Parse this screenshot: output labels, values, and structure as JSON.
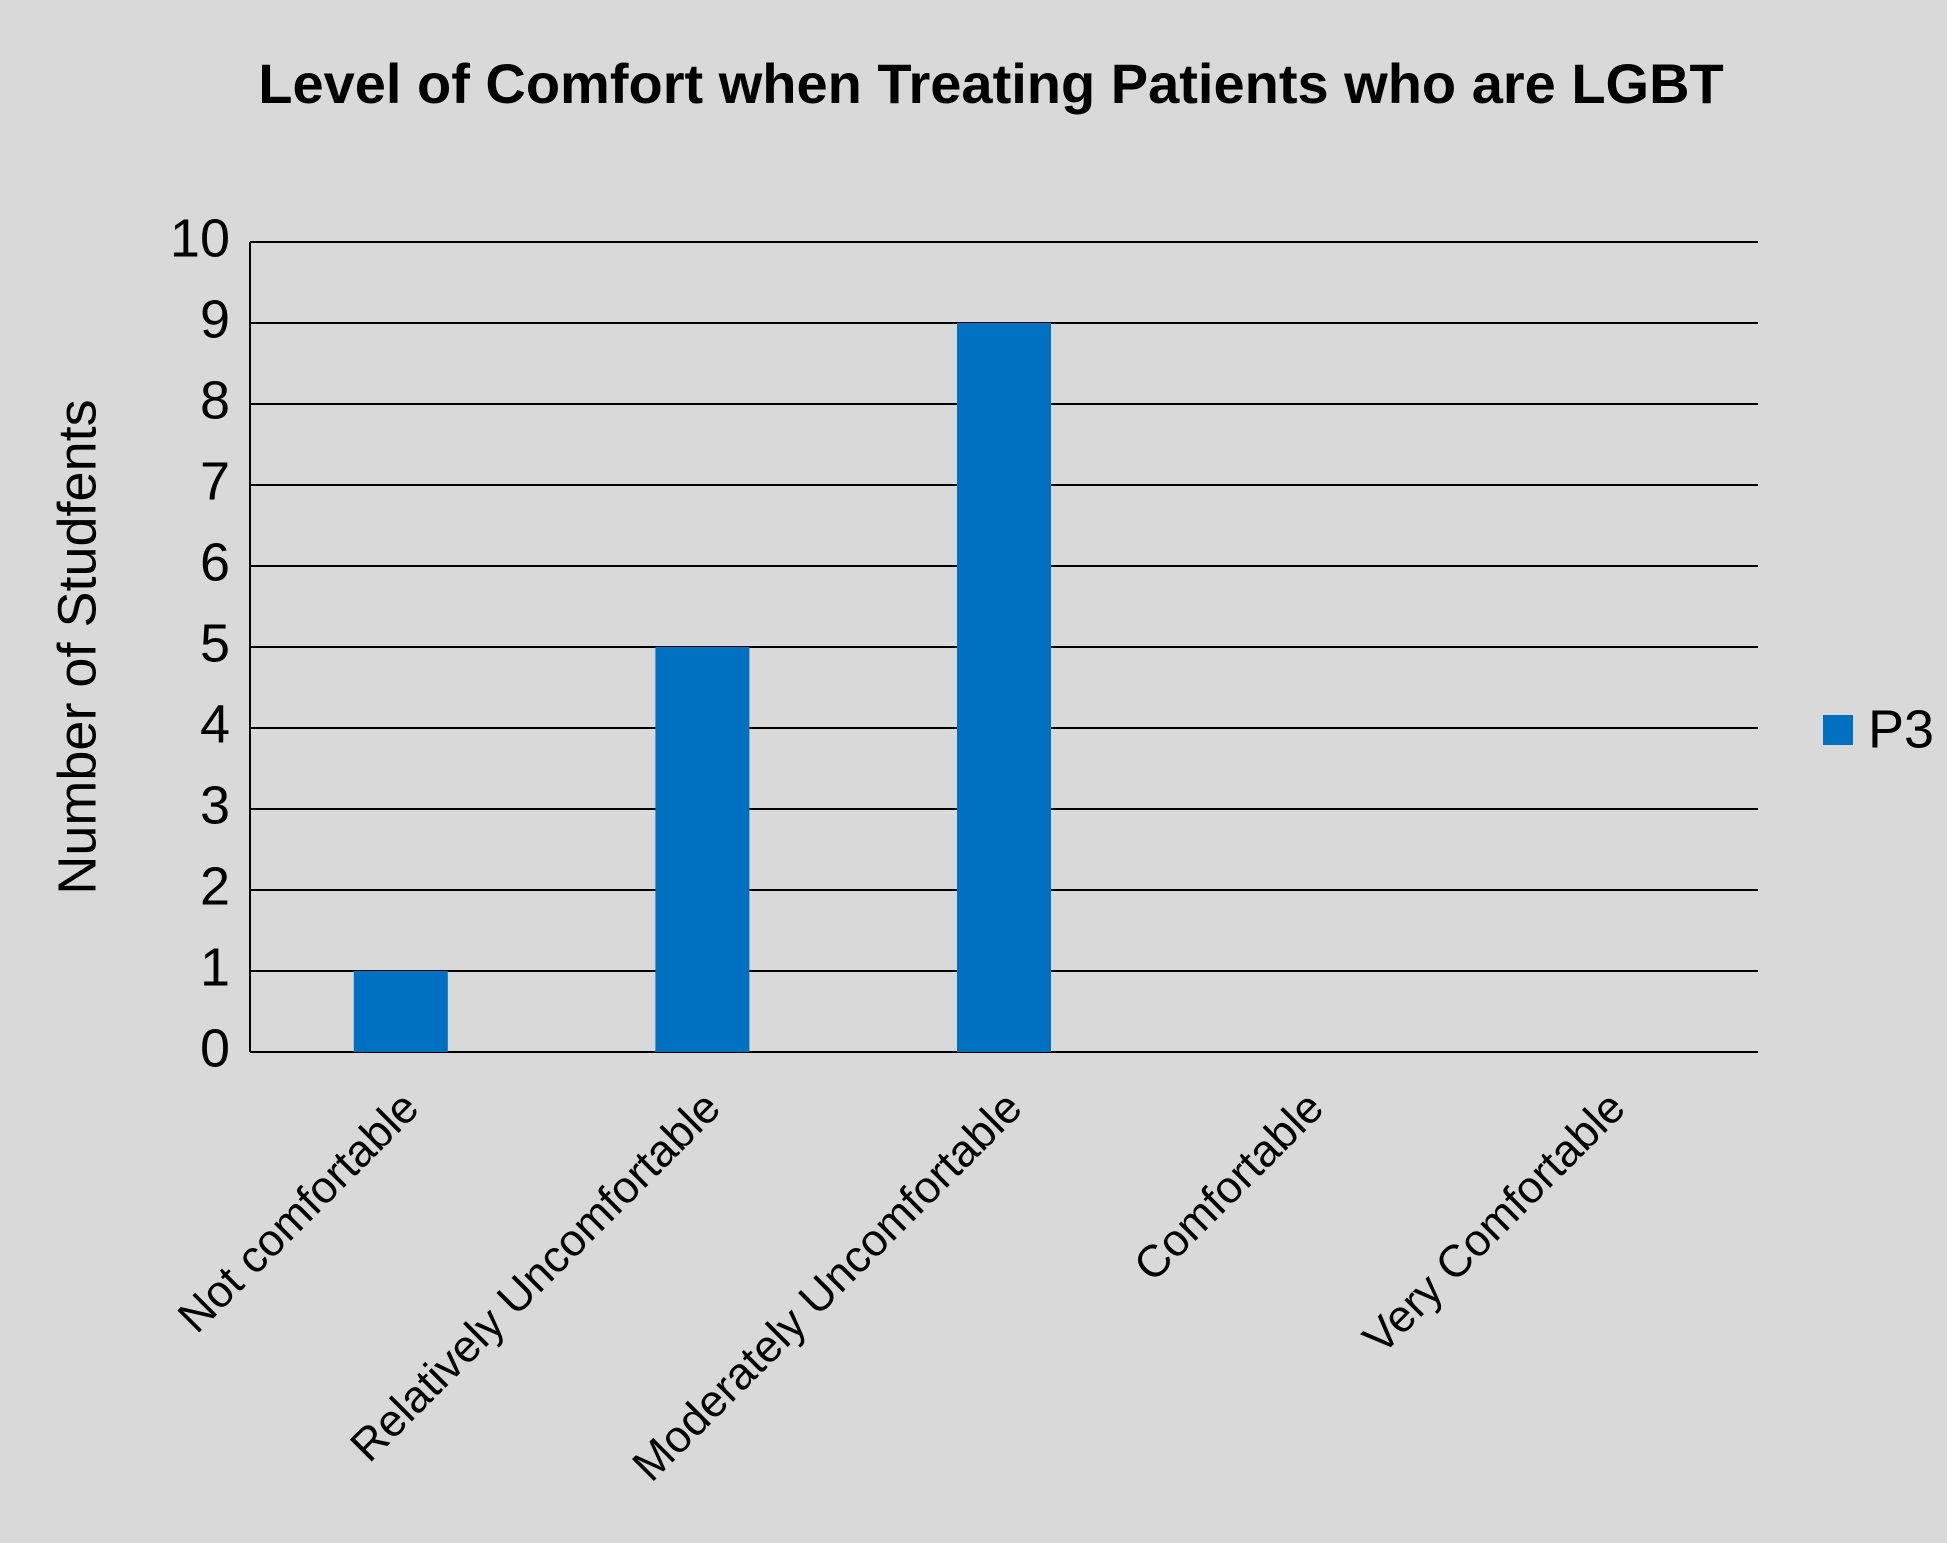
{
  "chart_data": {
    "type": "bar",
    "title": "Level of Comfort when Treating Patients who are LGBT",
    "y_label": "Number of Studfents",
    "categories": [
      "Not comfortable",
      "Relatively Uncomfortable",
      "Moderately Uncomfortable",
      "Comfortable",
      "Very Comfortable"
    ],
    "series": [
      {
        "name": "P3",
        "color": "#0070c0",
        "values": [
          1,
          5,
          9,
          0,
          0
        ]
      }
    ],
    "ylim": [
      0,
      10
    ],
    "yticks": [
      0,
      1,
      2,
      3,
      4,
      5,
      6,
      7,
      8,
      9,
      10
    ],
    "grid": true,
    "legend": "right"
  }
}
